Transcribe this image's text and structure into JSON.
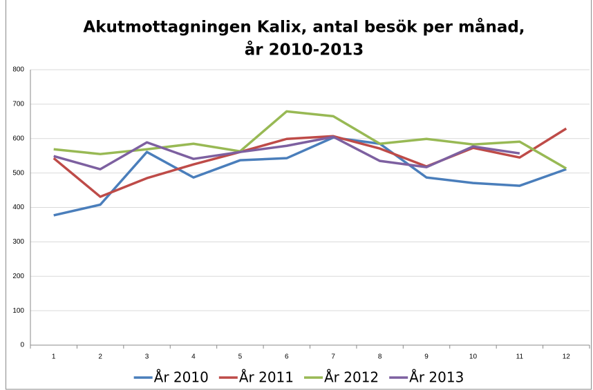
{
  "chart_data": {
    "type": "line",
    "title": [
      "Akutmottagningen Kalix, antal besök per månad,",
      "år 2010-2013"
    ],
    "categories": [
      "1",
      "2",
      "3",
      "4",
      "5",
      "6",
      "7",
      "8",
      "9",
      "10",
      "11",
      "12"
    ],
    "series": [
      {
        "name": "År 2010",
        "color": "#4a7ebb",
        "values": [
          377,
          408,
          561,
          487,
          537,
          543,
          603,
          585,
          487,
          471,
          463,
          511
        ]
      },
      {
        "name": "År 2011",
        "color": "#be4b48",
        "values": [
          543,
          431,
          485,
          525,
          561,
          599,
          607,
          571,
          519,
          573,
          545,
          629
        ]
      },
      {
        "name": "År 2012",
        "color": "#98b954",
        "values": [
          569,
          555,
          569,
          585,
          563,
          679,
          665,
          585,
          599,
          583,
          591,
          513
        ]
      },
      {
        "name": "År 2013",
        "color": "#7d60a0",
        "values": [
          549,
          511,
          589,
          541,
          561,
          579,
          605,
          535,
          517,
          577,
          557,
          null
        ]
      }
    ],
    "ylim": [
      0,
      800
    ],
    "yticks": [
      0,
      100,
      200,
      300,
      400,
      500,
      600,
      700,
      800
    ],
    "grid": true
  }
}
